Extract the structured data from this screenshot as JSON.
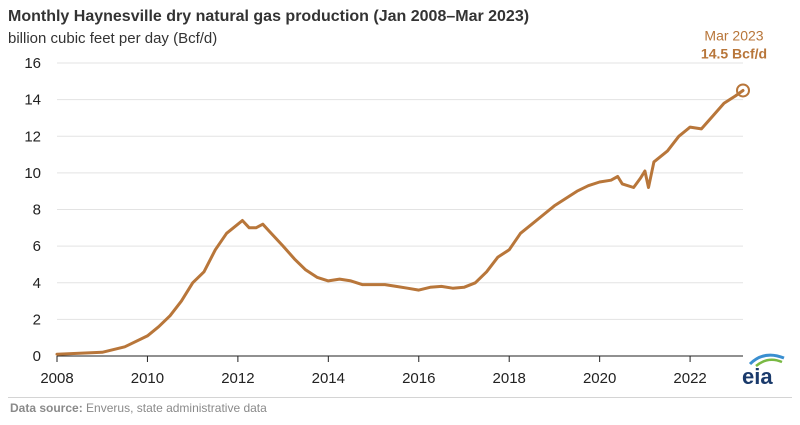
{
  "header": {
    "title": "Monthly Haynesville dry natural gas production (Jan 2008–Mar 2023)",
    "subtitle": "billion cubic feet per day (Bcf/d)"
  },
  "footer": {
    "source_label": "Data source:",
    "source_text": "Enverus, state administrative data",
    "logo_text": "eia"
  },
  "colors": {
    "series": "#b8763a",
    "grid": "#e3e3e3",
    "axis": "#222222"
  },
  "chart_data": {
    "type": "line",
    "title": "Monthly Haynesville dry natural gas production (Jan 2008–Mar 2023)",
    "ylabel": "billion cubic feet per day (Bcf/d)",
    "xlabel": "",
    "xlim": [
      2008,
      2023.17
    ],
    "ylim": [
      0,
      16
    ],
    "xticks": [
      2008,
      2010,
      2012,
      2014,
      2016,
      2018,
      2020,
      2022
    ],
    "yticks": [
      0,
      2,
      4,
      6,
      8,
      10,
      12,
      14,
      16
    ],
    "grid": true,
    "series": [
      {
        "name": "Haynesville dry natural gas production",
        "x": [
          2008.0,
          2008.5,
          2009.0,
          2009.5,
          2010.0,
          2010.25,
          2010.5,
          2010.75,
          2011.0,
          2011.25,
          2011.5,
          2011.75,
          2012.0,
          2012.1,
          2012.25,
          2012.4,
          2012.55,
          2012.7,
          2013.0,
          2013.25,
          2013.5,
          2013.75,
          2014.0,
          2014.25,
          2014.5,
          2014.75,
          2015.0,
          2015.25,
          2015.5,
          2015.75,
          2016.0,
          2016.25,
          2016.5,
          2016.75,
          2017.0,
          2017.25,
          2017.5,
          2017.75,
          2018.0,
          2018.25,
          2018.5,
          2018.75,
          2019.0,
          2019.25,
          2019.5,
          2019.75,
          2020.0,
          2020.25,
          2020.4,
          2020.5,
          2020.75,
          2020.9,
          2021.0,
          2021.08,
          2021.2,
          2021.5,
          2021.75,
          2022.0,
          2022.25,
          2022.5,
          2022.75,
          2023.0,
          2023.17
        ],
        "values": [
          0.1,
          0.15,
          0.2,
          0.5,
          1.1,
          1.6,
          2.2,
          3.0,
          4.0,
          4.6,
          5.8,
          6.7,
          7.2,
          7.4,
          7.0,
          7.0,
          7.2,
          6.8,
          6.0,
          5.3,
          4.7,
          4.3,
          4.1,
          4.2,
          4.1,
          3.9,
          3.9,
          3.9,
          3.8,
          3.7,
          3.6,
          3.75,
          3.8,
          3.7,
          3.75,
          4.0,
          4.6,
          5.4,
          5.8,
          6.7,
          7.2,
          7.7,
          8.2,
          8.6,
          9.0,
          9.3,
          9.5,
          9.6,
          9.8,
          9.4,
          9.2,
          9.7,
          10.1,
          9.2,
          10.6,
          11.2,
          12.0,
          12.5,
          12.4,
          13.1,
          13.8,
          14.2,
          14.5
        ]
      }
    ],
    "annotation": {
      "date": "Mar 2023",
      "value_text": "14.5 Bcf/d",
      "x": 2023.17,
      "y": 14.5
    }
  }
}
